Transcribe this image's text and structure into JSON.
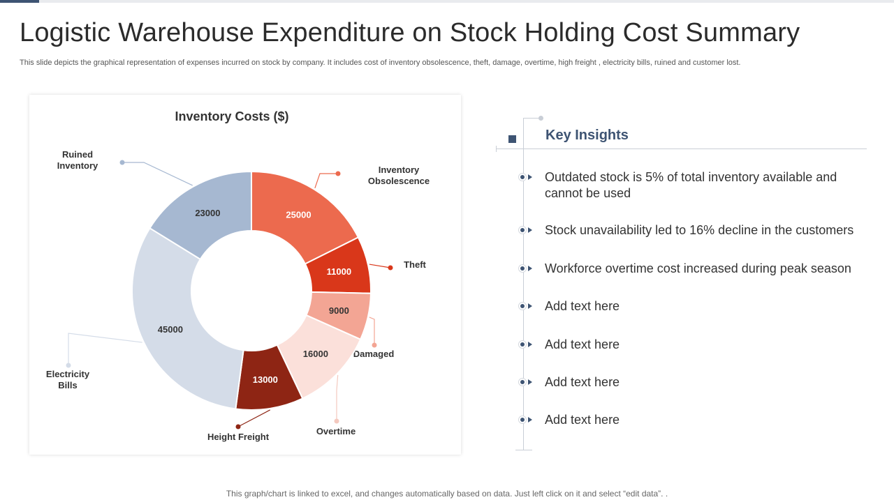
{
  "slide": {
    "title": "Logistic Warehouse Expenditure on Stock Holding Cost Summary",
    "subtitle": "This slide depicts the graphical representation of expenses incurred on stock by company. It includes cost of  inventory obsolescence, theft, damage, overtime, high freight ,  electricity bills, ruined and customer lost.",
    "footer": "This graph/chart is linked to excel,  and changes automatically based on data. Just left click on it and select “edit data”. ."
  },
  "chart_data": {
    "type": "pie",
    "variant": "donut",
    "title": "Inventory Costs ($)",
    "slices": [
      {
        "label": "Inventory Obsolescence",
        "label_lines": [
          "Inventory",
          "Obsolescence"
        ],
        "value": 25000,
        "color": "#ec6a4e",
        "label_color": "#ffffff"
      },
      {
        "label": "Theft",
        "label_lines": [
          "Theft"
        ],
        "value": 11000,
        "color": "#d9371a",
        "label_color": "#ffffff"
      },
      {
        "label": "Damaged",
        "label_lines": [
          "Damaged"
        ],
        "value": 9000,
        "color": "#f3a594",
        "label_color": "#333333"
      },
      {
        "label": "Overtime",
        "label_lines": [
          "Overtime"
        ],
        "value": 16000,
        "color": "#fbe0da",
        "label_color": "#333333"
      },
      {
        "label": "Height Freight",
        "label_lines": [
          "Height Freight"
        ],
        "value": 13000,
        "color": "#8e2514",
        "label_color": "#ffffff"
      },
      {
        "label": "Electricity Bills",
        "label_lines": [
          "Electricity",
          "Bills"
        ],
        "value": 45000,
        "color": "#d4dce8",
        "label_color": "#333333"
      },
      {
        "label": "Ruined Inventory",
        "label_lines": [
          "Ruined",
          "Inventory"
        ],
        "value": 23000,
        "color": "#a6b8d1",
        "label_color": "#333333"
      }
    ]
  },
  "insights": {
    "title": "Key Insights",
    "items": [
      "Outdated stock is 5% of total inventory available and cannot be used",
      "Stock unavailability  led to 16% decline in the customers",
      "Workforce overtime cost increased during peak season",
      "Add text here",
      "Add text here",
      "Add text here",
      "Add text here"
    ]
  },
  "colors": {
    "accent": "#3e5473",
    "rule": "#c9ced6"
  }
}
